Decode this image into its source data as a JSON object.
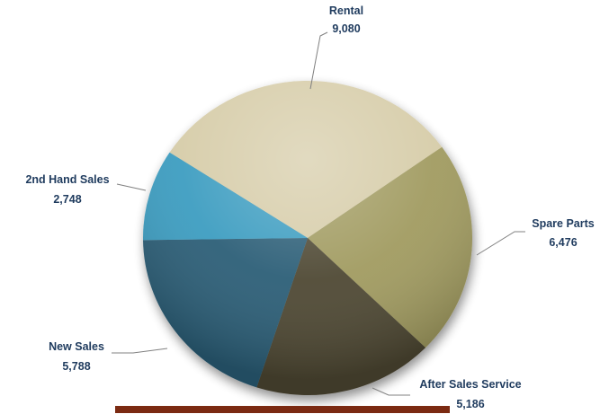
{
  "chart_data": {
    "type": "pie",
    "categories": [
      "Rental",
      "Spare Parts",
      "After Sales Service",
      "New Sales",
      "2nd Hand Sales"
    ],
    "values": [
      9080,
      6476,
      5186,
      5788,
      2748
    ],
    "value_labels": [
      "9,080",
      "6,476",
      "5,186",
      "5,788",
      "2,748"
    ],
    "colors": [
      "#d6cca8",
      "#a09a5e",
      "#4d4632",
      "#2a5d76",
      "#3a9cc0"
    ],
    "legend": "none",
    "style": "3D pie with shadow and gloss"
  },
  "footer_bar": {
    "color": "#7b2a12"
  }
}
